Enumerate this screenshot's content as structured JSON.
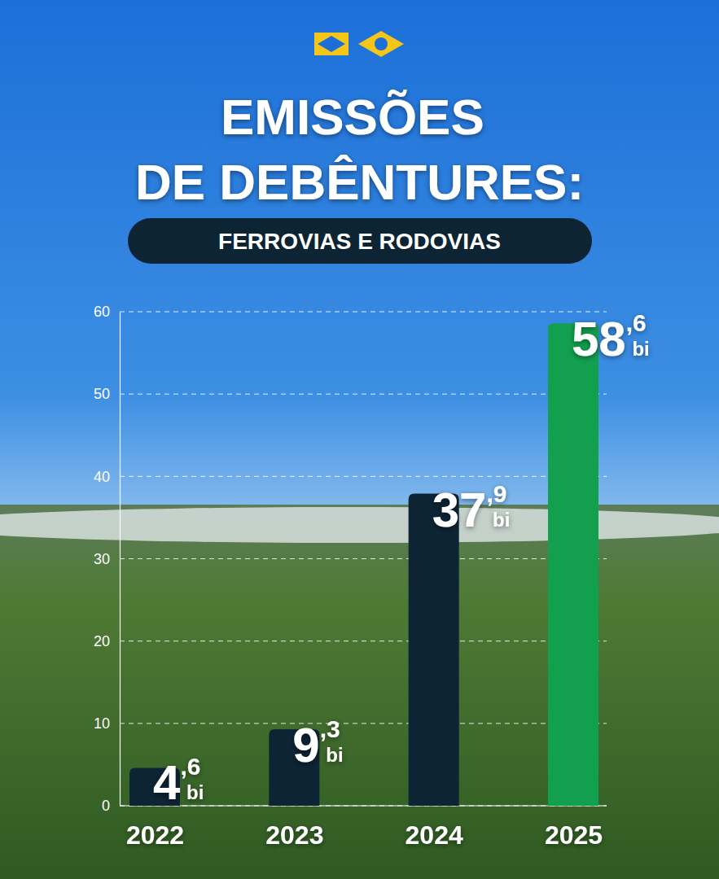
{
  "chart_data": {
    "type": "bar",
    "title": "EMISSÕES DE DEBÊNTURES:",
    "subtitle": "FERROVIAS E RODOVIAS",
    "categories": [
      "2022",
      "2023",
      "2024",
      "2025"
    ],
    "values": [
      4.6,
      9.3,
      37.9,
      58.6
    ],
    "value_labels": [
      "4,6 bi",
      "9,3 bi",
      "37,9 bi",
      "58,6 bi"
    ],
    "colors": [
      "#0d2434",
      "#0d2434",
      "#0d2434",
      "#12a04f"
    ],
    "ylim": [
      0,
      60
    ],
    "yticks": [
      0,
      10,
      20,
      30,
      40,
      50,
      60
    ],
    "grid": true,
    "data_labels": true
  }
}
